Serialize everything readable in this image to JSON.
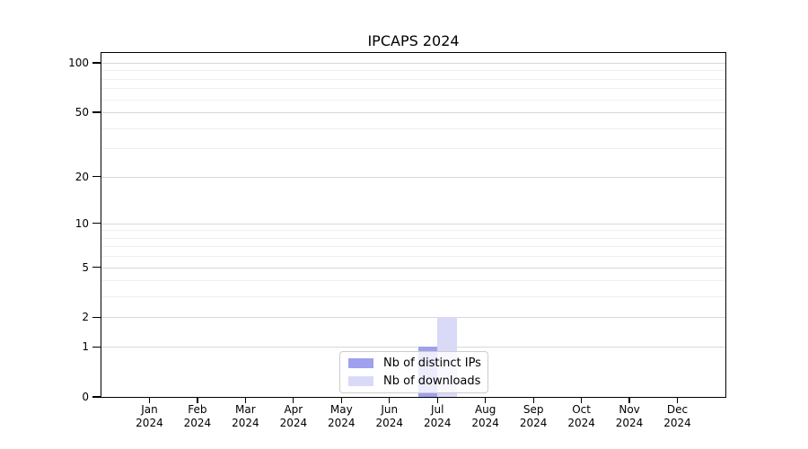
{
  "figure": {
    "background": "#ffffff"
  },
  "chart_data": {
    "type": "bar",
    "title": "IPCAPS 2024",
    "categories": [
      {
        "month": "Jan",
        "year": "2024"
      },
      {
        "month": "Feb",
        "year": "2024"
      },
      {
        "month": "Mar",
        "year": "2024"
      },
      {
        "month": "Apr",
        "year": "2024"
      },
      {
        "month": "May",
        "year": "2024"
      },
      {
        "month": "Jun",
        "year": "2024"
      },
      {
        "month": "Jul",
        "year": "2024"
      },
      {
        "month": "Aug",
        "year": "2024"
      },
      {
        "month": "Sep",
        "year": "2024"
      },
      {
        "month": "Oct",
        "year": "2024"
      },
      {
        "month": "Nov",
        "year": "2024"
      },
      {
        "month": "Dec",
        "year": "2024"
      }
    ],
    "series": [
      {
        "name": "Nb of distinct IPs",
        "color": "#a0a0ee",
        "values": [
          0,
          0,
          0,
          0,
          0,
          0,
          1,
          0,
          0,
          0,
          0,
          0
        ]
      },
      {
        "name": "Nb of downloads",
        "color": "#d9d9f8",
        "values": [
          0,
          0,
          0,
          0,
          0,
          0,
          2,
          0,
          0,
          0,
          0,
          0
        ]
      }
    ],
    "yscale": "log1p",
    "ylim": [
      0,
      117
    ],
    "yticks": [
      0,
      1,
      2,
      5,
      10,
      20,
      50,
      100
    ],
    "minor_yticks": [
      3,
      4,
      6,
      7,
      8,
      9,
      30,
      40,
      60,
      70,
      80,
      90
    ],
    "grid": "horizontal",
    "legend_position": "lower-center",
    "colors": {
      "grid_major": "#d8d8d8",
      "grid_minor": "#efefef",
      "spine": "#000000",
      "legend_border": "#cccccc"
    }
  }
}
